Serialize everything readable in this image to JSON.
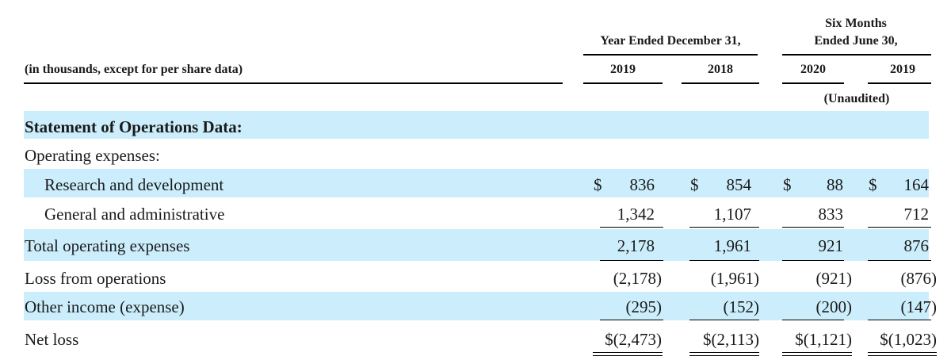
{
  "header": {
    "units_label": "(in thousands, except for per share data)",
    "group1_label": "Year Ended December 31,",
    "group2_line1": "Six Months",
    "group2_line2": "Ended June 30,",
    "col_2019": "2019",
    "col_2018": "2018",
    "col_2020": "2020",
    "col_2019b": "2019",
    "unaudited": "(Unaudited)"
  },
  "rows": {
    "section": "Statement of Operations Data:",
    "opex_label": "Operating expenses:",
    "rd": {
      "label": "Research and development",
      "dollar": "$",
      "v1": "836",
      "v2": "854",
      "v3": "88",
      "v4": "164"
    },
    "ga": {
      "label": "General and administrative",
      "v1": "1,342",
      "v2": "1,107",
      "v3": "833",
      "v4": "712"
    },
    "total": {
      "label": "Total operating expenses",
      "v1": "2,178",
      "v2": "1,961",
      "v3": "921",
      "v4": "876"
    },
    "loss_ops": {
      "label": "Loss from operations",
      "v1": "(2,178)",
      "v2": "(1,961)",
      "v3": "(921)",
      "v4": "(876)"
    },
    "other": {
      "label": "Other income (expense)",
      "v1": "(295)",
      "v2": "(152)",
      "v3": "(200)",
      "v4": "(147)"
    },
    "net": {
      "label": "Net loss",
      "v1": "$(2,473)",
      "v2": "$(2,113)",
      "v3": "$(1,121)",
      "v4": "$(1,023)"
    }
  },
  "colors": {
    "band": "#cceefc"
  }
}
